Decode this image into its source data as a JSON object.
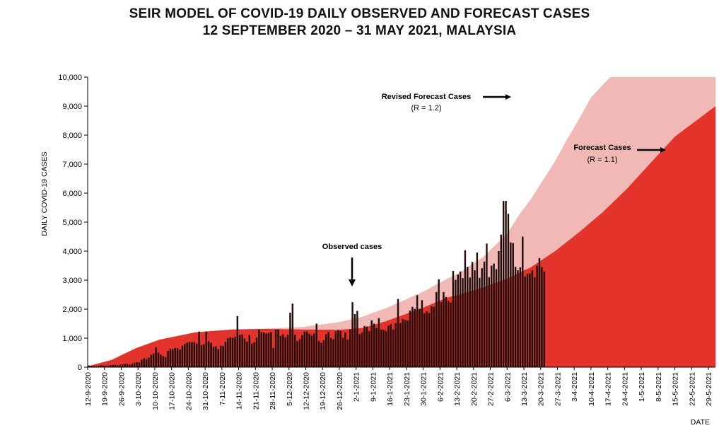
{
  "title": {
    "line1": "SEIR MODEL OF COVID-19 DAILY OBSERVED AND FORECAST CASES",
    "line2": "12 SEPTEMBER 2020 – 31 MAY 2021, MALAYSIA"
  },
  "colors": {
    "observed_bar": "#1f0e0c",
    "forecast_r11": "#e3332a",
    "forecast_r12": "#f1b9b6",
    "axis": "#000000"
  },
  "chart_data": {
    "type": "bar",
    "ylabel": "DAILY COVID-19 CASES",
    "xlabel": "DATE",
    "ylim": [
      0,
      10000
    ],
    "y_ticks": [
      "0",
      "1,000",
      "2,000",
      "3,000",
      "4,000",
      "5,000",
      "6,000",
      "7,000",
      "8,000",
      "9,000",
      "10,000"
    ],
    "x_ticks": [
      "12-9-2020",
      "19-9-2020",
      "26-9-2020",
      "3-10-2020",
      "10-10-2020",
      "17-10-2020",
      "24-10-2020",
      "31-10-2020",
      "7-11-2020",
      "14-11-2020",
      "21-11-2020",
      "28-11-2020",
      "5-12-2020",
      "12-12-2020",
      "19-12-2020",
      "26-12-2020",
      "2-1-2021",
      "9-1-2021",
      "16-1-2021",
      "23-1-2021",
      "30-1-2021",
      "6-2-2021",
      "13-2-2021",
      "20-2-2021",
      "27-2-2021",
      "6-3-2021",
      "13-3-2021",
      "20-3-2021",
      "27-3-2021",
      "3-4-2021",
      "10-4-2021",
      "17-4-2021",
      "24-4-2021",
      "1-5-2021",
      "8-5-2021",
      "15-5-2021",
      "22-5-2021",
      "29-5-2021"
    ],
    "grid": false,
    "series": [
      {
        "name": "Observed cases",
        "start_date": "12-9-2020",
        "values": [
          57,
          50,
          40,
          38,
          45,
          62,
          59,
          48,
          52,
          71,
          80,
          89,
          61,
          82,
          95,
          110,
          120,
          88,
          115,
          150,
          170,
          160,
          260,
          310,
          280,
          330,
          430,
          470,
          690,
          500,
          430,
          380,
          350,
          560,
          630,
          630,
          660,
          660,
          600,
          740,
          800,
          850,
          870,
          860,
          870,
          810,
          1230,
          760,
          790,
          1230,
          890,
          840,
          700,
          720,
          620,
          740,
          730,
          870,
          1000,
          1030,
          1010,
          1050,
          1760,
          1110,
          1130,
          990,
          880,
          1110,
          810,
          860,
          1020,
          1300,
          1210,
          1200,
          1160,
          1180,
          1210,
          660,
          1290,
          1300,
          1080,
          1130,
          1030,
          1110,
          1880,
          2190,
          1120,
          900,
          970,
          1100,
          1230,
          1230,
          1150,
          1090,
          1160,
          1500,
          900,
          840,
          930,
          1140,
          1220,
          1010,
          960,
          1230,
          1280,
          1250,
          1010,
          1200,
          950,
          1300,
          2240,
          1830,
          1940,
          1140,
          1200,
          1420,
          1400,
          1240,
          1610,
          1500,
          1350,
          1690,
          1300,
          1290,
          1250,
          1430,
          1480,
          1300,
          1520,
          2350,
          1520,
          1660,
          1630,
          1600,
          1950,
          2080,
          2010,
          2480,
          2010,
          2310,
          1860,
          1920,
          1870,
          2100,
          2080,
          2590,
          3030,
          2240,
          2590,
          2420,
          2290,
          2230,
          3320,
          3010,
          3190,
          3300,
          3070,
          4030,
          3460,
          3090,
          3630,
          3340,
          3950,
          3080,
          3410,
          3640,
          4260,
          3100,
          3500,
          3570,
          3380,
          4000,
          4570,
          5730,
          5730,
          5290,
          4300,
          4280,
          3460,
          3340,
          3440,
          4500,
          3130,
          3220,
          3230,
          3340,
          3100,
          3500,
          3760,
          3450,
          3300
        ],
        "color": "#1f0e0c"
      },
      {
        "name": "Forecast Cases",
        "note": "(R = 1.1)",
        "x": [
          0,
          10,
          20,
          30,
          45,
          60,
          75,
          90,
          105,
          115,
          125,
          140,
          150,
          155,
          165,
          175,
          185,
          195,
          205,
          215,
          225,
          235,
          245,
          262
        ],
        "values": [
          30,
          250,
          650,
          950,
          1200,
          1300,
          1320,
          1300,
          1290,
          1350,
          1600,
          2050,
          2400,
          2500,
          2750,
          3050,
          3450,
          4000,
          4650,
          5350,
          6150,
          7050,
          7950,
          9000
        ],
        "color": "#e3332a"
      },
      {
        "name": "Revised Forecast Cases",
        "note": "(R = 1.2)",
        "x": [
          0,
          10,
          20,
          30,
          45,
          60,
          75,
          90,
          105,
          115,
          125,
          140,
          150,
          155,
          165,
          175,
          180,
          185,
          190,
          195,
          200,
          205,
          210,
          218,
          222
        ],
        "values": [
          30,
          250,
          650,
          950,
          1200,
          1300,
          1330,
          1390,
          1550,
          1750,
          2050,
          2600,
          3050,
          3250,
          3800,
          4600,
          5250,
          5800,
          6450,
          7100,
          7850,
          8550,
          9300,
          10000,
          10000
        ],
        "color": "#f1b9b6"
      }
    ],
    "annotations": [
      {
        "text": "Observed cases",
        "arrow": "down"
      },
      {
        "text": "Revised Forecast Cases",
        "sub": "(R = 1.2)",
        "arrow": "right"
      },
      {
        "text": "Forecast Cases",
        "sub": "(R = 1.1)",
        "arrow": "right"
      }
    ]
  }
}
